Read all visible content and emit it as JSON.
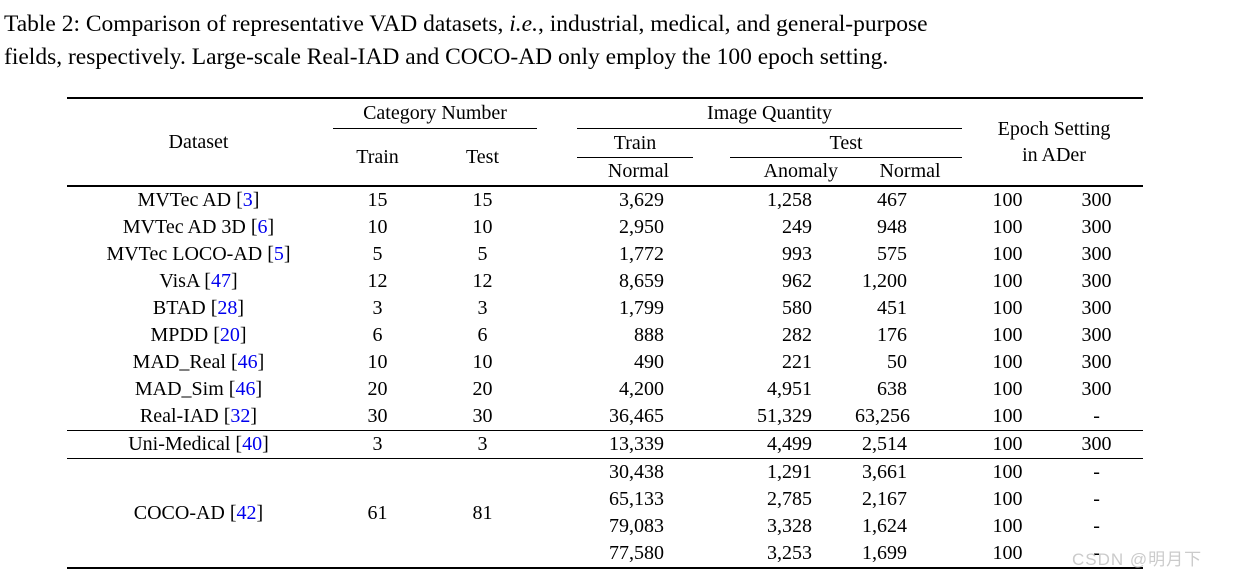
{
  "caption": {
    "line1": {
      "pre": "Table 2: Comparison of representative VAD datasets, ",
      "italic": "i.e.",
      "post": ", industrial, medical, and general-purpose"
    },
    "line2": "fields, respectively. Large-scale Real-IAD and COCO-AD only employ the 100 epoch setting."
  },
  "colors": {
    "citation": "#0000ee",
    "text": "#000000",
    "watermark": "#cbcbcb"
  },
  "watermark": "CSDN @明月下",
  "table": {
    "header": {
      "dataset": "Dataset",
      "category_number": "Category Number",
      "cat_train": "Train",
      "cat_test": "Test",
      "image_quantity": "Image Quantity",
      "img_train": "Train",
      "img_test": "Test",
      "img_train_normal": "Normal",
      "img_test_anomaly": "Anomaly",
      "img_test_normal": "Normal",
      "epoch_setting_line1": "Epoch Setting",
      "epoch_setting_line2": "in ADer"
    },
    "sections": [
      {
        "name": "industrial",
        "rows": [
          {
            "dataset": "MVTec AD",
            "cite": "3",
            "cat_train": "15",
            "cat_test": "15",
            "lines": [
              {
                "train_normal": "3,629",
                "test_anomaly": "1,258",
                "test_normal": "467",
                "epoch_100": "100",
                "epoch_300": "300"
              }
            ]
          },
          {
            "dataset": "MVTec AD 3D",
            "cite": "6",
            "cat_train": "10",
            "cat_test": "10",
            "lines": [
              {
                "train_normal": "2,950",
                "test_anomaly": "249",
                "test_normal": "948",
                "epoch_100": "100",
                "epoch_300": "300"
              }
            ]
          },
          {
            "dataset": "MVTec LOCO-AD",
            "cite": "5",
            "cat_train": "5",
            "cat_test": "5",
            "lines": [
              {
                "train_normal": "1,772",
                "test_anomaly": "993",
                "test_normal": "575",
                "epoch_100": "100",
                "epoch_300": "300"
              }
            ]
          },
          {
            "dataset": "VisA",
            "cite": "47",
            "cat_train": "12",
            "cat_test": "12",
            "lines": [
              {
                "train_normal": "8,659",
                "test_anomaly": "962",
                "test_normal": "1,200",
                "epoch_100": "100",
                "epoch_300": "300"
              }
            ]
          },
          {
            "dataset": "BTAD",
            "cite": "28",
            "cat_train": "3",
            "cat_test": "3",
            "lines": [
              {
                "train_normal": "1,799",
                "test_anomaly": "580",
                "test_normal": "451",
                "epoch_100": "100",
                "epoch_300": "300"
              }
            ]
          },
          {
            "dataset": "MPDD",
            "cite": "20",
            "cat_train": "6",
            "cat_test": "6",
            "lines": [
              {
                "train_normal": "888",
                "test_anomaly": "282",
                "test_normal": "176",
                "epoch_100": "100",
                "epoch_300": "300"
              }
            ]
          },
          {
            "dataset": "MAD_Real",
            "cite": "46",
            "cat_train": "10",
            "cat_test": "10",
            "lines": [
              {
                "train_normal": "490",
                "test_anomaly": "221",
                "test_normal": "50",
                "epoch_100": "100",
                "epoch_300": "300"
              }
            ]
          },
          {
            "dataset": "MAD_Sim",
            "cite": "46",
            "cat_train": "20",
            "cat_test": "20",
            "lines": [
              {
                "train_normal": "4,200",
                "test_anomaly": "4,951",
                "test_normal": "638",
                "epoch_100": "100",
                "epoch_300": "300"
              }
            ]
          },
          {
            "dataset": "Real-IAD",
            "cite": "32",
            "cat_train": "30",
            "cat_test": "30",
            "lines": [
              {
                "train_normal": "36,465",
                "test_anomaly": "51,329",
                "test_normal": "63,256",
                "epoch_100": "100",
                "epoch_300": "-"
              }
            ]
          }
        ]
      },
      {
        "name": "medical",
        "rows": [
          {
            "dataset": "Uni-Medical",
            "cite": "40",
            "cat_train": "3",
            "cat_test": "3",
            "lines": [
              {
                "train_normal": "13,339",
                "test_anomaly": "4,499",
                "test_normal": "2,514",
                "epoch_100": "100",
                "epoch_300": "300"
              }
            ]
          }
        ]
      },
      {
        "name": "general-purpose",
        "rows": [
          {
            "dataset": "COCO-AD",
            "cite": "42",
            "cat_train": "61",
            "cat_test": "81",
            "lines": [
              {
                "train_normal": "30,438",
                "test_anomaly": "1,291",
                "test_normal": "3,661",
                "epoch_100": "100",
                "epoch_300": "-"
              },
              {
                "train_normal": "65,133",
                "test_anomaly": "2,785",
                "test_normal": "2,167",
                "epoch_100": "100",
                "epoch_300": "-"
              },
              {
                "train_normal": "79,083",
                "test_anomaly": "3,328",
                "test_normal": "1,624",
                "epoch_100": "100",
                "epoch_300": "-"
              },
              {
                "train_normal": "77,580",
                "test_anomaly": "3,253",
                "test_normal": "1,699",
                "epoch_100": "100",
                "epoch_300": "-"
              }
            ]
          }
        ]
      }
    ]
  }
}
